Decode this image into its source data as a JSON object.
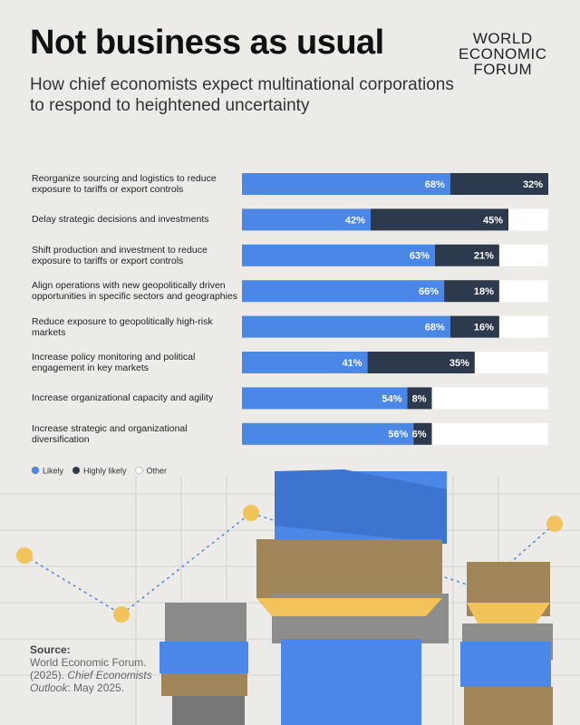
{
  "chart_data": {
    "type": "stacked-bar-horizontal",
    "title": "Not business as usual",
    "subtitle": "How chief economists expect multinational corporations to respond to heightened uncertainty",
    "logo": [
      "WORLD",
      "ECONOMIC",
      "FORUM"
    ],
    "categories": [
      "Reorganize sourcing and logistics to reduce exposure to tariffs or export controls",
      "Delay strategic decisions and investments",
      "Shift production and investment to reduce exposure to tariffs or export controls",
      "Align operations with new geopolitically driven opportunities in specific sectors and geographies",
      "Reduce exposure to geopolitically high-risk markets",
      "Increase policy monitoring and political engagement in key markets",
      "Increase organizational capacity and agility",
      "Increase strategic and organizational diversification"
    ],
    "xlim": [
      0,
      100
    ],
    "series": [
      {
        "name": "Likely",
        "color": "#4a87e6",
        "values": [
          68,
          42,
          63,
          66,
          68,
          41,
          54,
          56
        ],
        "value_labels": [
          "68%",
          "42%",
          "63%",
          "66%",
          "68%",
          "41%",
          "54%",
          "56%"
        ]
      },
      {
        "name": "Highly likely",
        "color": "#2d3a4d",
        "values": [
          32,
          45,
          21,
          18,
          16,
          35,
          8,
          6
        ],
        "value_labels": [
          "32%",
          "45%",
          "21%",
          "18%",
          "16%",
          "35%",
          "8%",
          "6%"
        ]
      },
      {
        "name": "Other",
        "color": "#ffffff",
        "values": [
          0,
          13,
          16,
          16,
          16,
          24,
          38,
          38
        ]
      }
    ],
    "legend": "bottom-left",
    "source": {
      "label": "Source:",
      "text": "World Economic Forum. (2025).",
      "publication": "Chief Economists Outlook",
      "date": ": May 2025."
    }
  }
}
